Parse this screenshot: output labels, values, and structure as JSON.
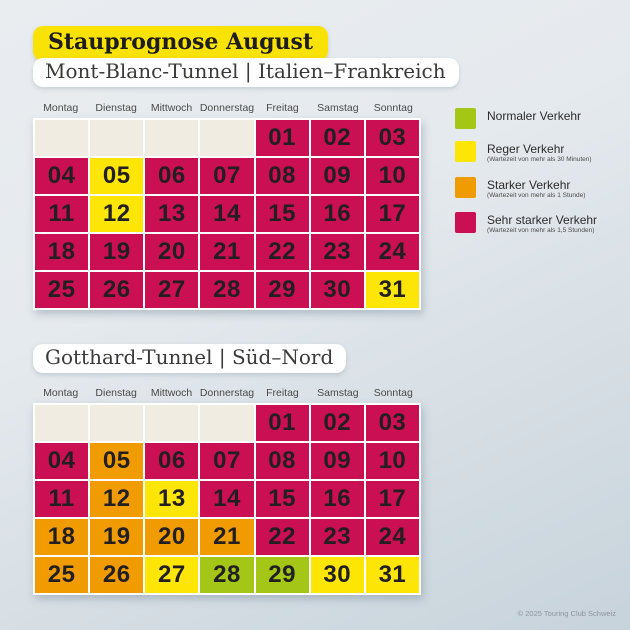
{
  "title": {
    "text": "Stauprognose August",
    "bg": "#f9e206"
  },
  "weekdays": [
    "Montag",
    "Dienstag",
    "Mittwoch",
    "Donnerstag",
    "Freitag",
    "Samstag",
    "Sonntag"
  ],
  "colors": {
    "normal": "#a4c617",
    "reger": "#fde505",
    "stark": "#f09c00",
    "sehr": "#cb0f53",
    "empty": "#f1ece1"
  },
  "legend": {
    "items": [
      {
        "key": "normal",
        "label": "Normaler Verkehr",
        "sub": "",
        "color": "#a4c617"
      },
      {
        "key": "reger",
        "label": "Reger Verkehr",
        "sub": "(Wartezeit von mehr als 30 Minuten)",
        "color": "#fde505"
      },
      {
        "key": "stark",
        "label": "Starker Verkehr",
        "sub": "(Wartezeit von mehr als 1 Stunde)",
        "color": "#f09c00"
      },
      {
        "key": "sehr",
        "label": "Sehr starker Verkehr",
        "sub": "(Wartezeit von mehr als 1,5 Stunden)",
        "color": "#cb0f53"
      }
    ]
  },
  "chart_data": [
    {
      "type": "heatmap",
      "subtitle": "Mont-Blanc-Tunnel | Italien–Frankreich",
      "month": "August",
      "leading_empty": 4,
      "days": [
        {
          "label": "01",
          "level": "sehr"
        },
        {
          "label": "02",
          "level": "sehr"
        },
        {
          "label": "03",
          "level": "sehr"
        },
        {
          "label": "04",
          "level": "sehr"
        },
        {
          "label": "05",
          "level": "reger"
        },
        {
          "label": "06",
          "level": "sehr"
        },
        {
          "label": "07",
          "level": "sehr"
        },
        {
          "label": "08",
          "level": "sehr"
        },
        {
          "label": "09",
          "level": "sehr"
        },
        {
          "label": "10",
          "level": "sehr"
        },
        {
          "label": "11",
          "level": "sehr"
        },
        {
          "label": "12",
          "level": "reger"
        },
        {
          "label": "13",
          "level": "sehr"
        },
        {
          "label": "14",
          "level": "sehr"
        },
        {
          "label": "15",
          "level": "sehr"
        },
        {
          "label": "16",
          "level": "sehr"
        },
        {
          "label": "17",
          "level": "sehr"
        },
        {
          "label": "18",
          "level": "sehr"
        },
        {
          "label": "19",
          "level": "sehr"
        },
        {
          "label": "20",
          "level": "sehr"
        },
        {
          "label": "21",
          "level": "sehr"
        },
        {
          "label": "22",
          "level": "sehr"
        },
        {
          "label": "23",
          "level": "sehr"
        },
        {
          "label": "24",
          "level": "sehr"
        },
        {
          "label": "25",
          "level": "sehr"
        },
        {
          "label": "26",
          "level": "sehr"
        },
        {
          "label": "27",
          "level": "sehr"
        },
        {
          "label": "28",
          "level": "sehr"
        },
        {
          "label": "29",
          "level": "sehr"
        },
        {
          "label": "30",
          "level": "sehr"
        },
        {
          "label": "31",
          "level": "reger"
        }
      ]
    },
    {
      "type": "heatmap",
      "subtitle": "Gotthard-Tunnel | Süd–Nord",
      "month": "August",
      "leading_empty": 4,
      "days": [
        {
          "label": "01",
          "level": "sehr"
        },
        {
          "label": "02",
          "level": "sehr"
        },
        {
          "label": "03",
          "level": "sehr"
        },
        {
          "label": "04",
          "level": "sehr"
        },
        {
          "label": "05",
          "level": "stark"
        },
        {
          "label": "06",
          "level": "sehr"
        },
        {
          "label": "07",
          "level": "sehr"
        },
        {
          "label": "08",
          "level": "sehr"
        },
        {
          "label": "09",
          "level": "sehr"
        },
        {
          "label": "10",
          "level": "sehr"
        },
        {
          "label": "11",
          "level": "sehr"
        },
        {
          "label": "12",
          "level": "stark"
        },
        {
          "label": "13",
          "level": "reger"
        },
        {
          "label": "14",
          "level": "sehr"
        },
        {
          "label": "15",
          "level": "sehr"
        },
        {
          "label": "16",
          "level": "sehr"
        },
        {
          "label": "17",
          "level": "sehr"
        },
        {
          "label": "18",
          "level": "stark"
        },
        {
          "label": "19",
          "level": "stark"
        },
        {
          "label": "20",
          "level": "stark"
        },
        {
          "label": "21",
          "level": "stark"
        },
        {
          "label": "22",
          "level": "sehr"
        },
        {
          "label": "23",
          "level": "sehr"
        },
        {
          "label": "24",
          "level": "sehr"
        },
        {
          "label": "25",
          "level": "stark"
        },
        {
          "label": "26",
          "level": "stark"
        },
        {
          "label": "27",
          "level": "reger"
        },
        {
          "label": "28",
          "level": "normal"
        },
        {
          "label": "29",
          "level": "normal"
        },
        {
          "label": "30",
          "level": "reger"
        },
        {
          "label": "31",
          "level": "reger"
        }
      ]
    }
  ],
  "footer": {
    "text": "© 2025 Touring Club Schweiz"
  }
}
